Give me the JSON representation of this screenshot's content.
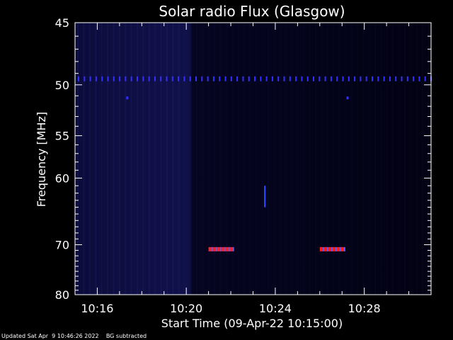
{
  "chart_data": {
    "type": "heatmap",
    "title": "Solar radio Flux (Glasgow)",
    "xlabel": "Start Time (09-Apr-22 10:15:00)",
    "ylabel": "Frequency [MHz]",
    "x_range_minutes": [
      10.25,
      10.5167
    ],
    "x_unit": "hours (decimal)",
    "xlim": [
      "10:15",
      "10:31"
    ],
    "ylim": [
      45,
      80
    ],
    "x_ticks": [
      {
        "value": "10:16",
        "label": "10:16"
      },
      {
        "value": "10:20",
        "label": "10:20"
      },
      {
        "value": "10:24",
        "label": "10:24"
      },
      {
        "value": "10:28",
        "label": "10:28"
      }
    ],
    "y_ticks": [
      45,
      50,
      55,
      60,
      70,
      80
    ],
    "y_scale": "reciprocal",
    "features": [
      {
        "kind": "interference-line",
        "frequency": 49.5,
        "color": "#3030ff"
      },
      {
        "kind": "burst",
        "time_start": "10:21",
        "time_end": "10:22",
        "frequency": 70.8,
        "color": "#ff2020"
      },
      {
        "kind": "burst",
        "time_start": "10:26",
        "time_end": "10:27",
        "frequency": 70.8,
        "color": "#ff2020"
      },
      {
        "kind": "spike",
        "time": "10:23.5",
        "freq_start": 61,
        "freq_end": 64,
        "color": "#3a4cff"
      },
      {
        "kind": "dot",
        "time": "10:17.3",
        "frequency": 51.2,
        "color": "#3030ff"
      },
      {
        "kind": "dot",
        "time": "10:27.2",
        "frequency": 51.2,
        "color": "#3030ff"
      }
    ],
    "colors": {
      "background": "#000010",
      "low": "#0a0a40",
      "mid": "#1c1c78",
      "high": "#ff2020"
    }
  },
  "footer": {
    "updated": "Updated Sat Apr  9 10:46:26 2022",
    "note": "BG subtracted"
  }
}
